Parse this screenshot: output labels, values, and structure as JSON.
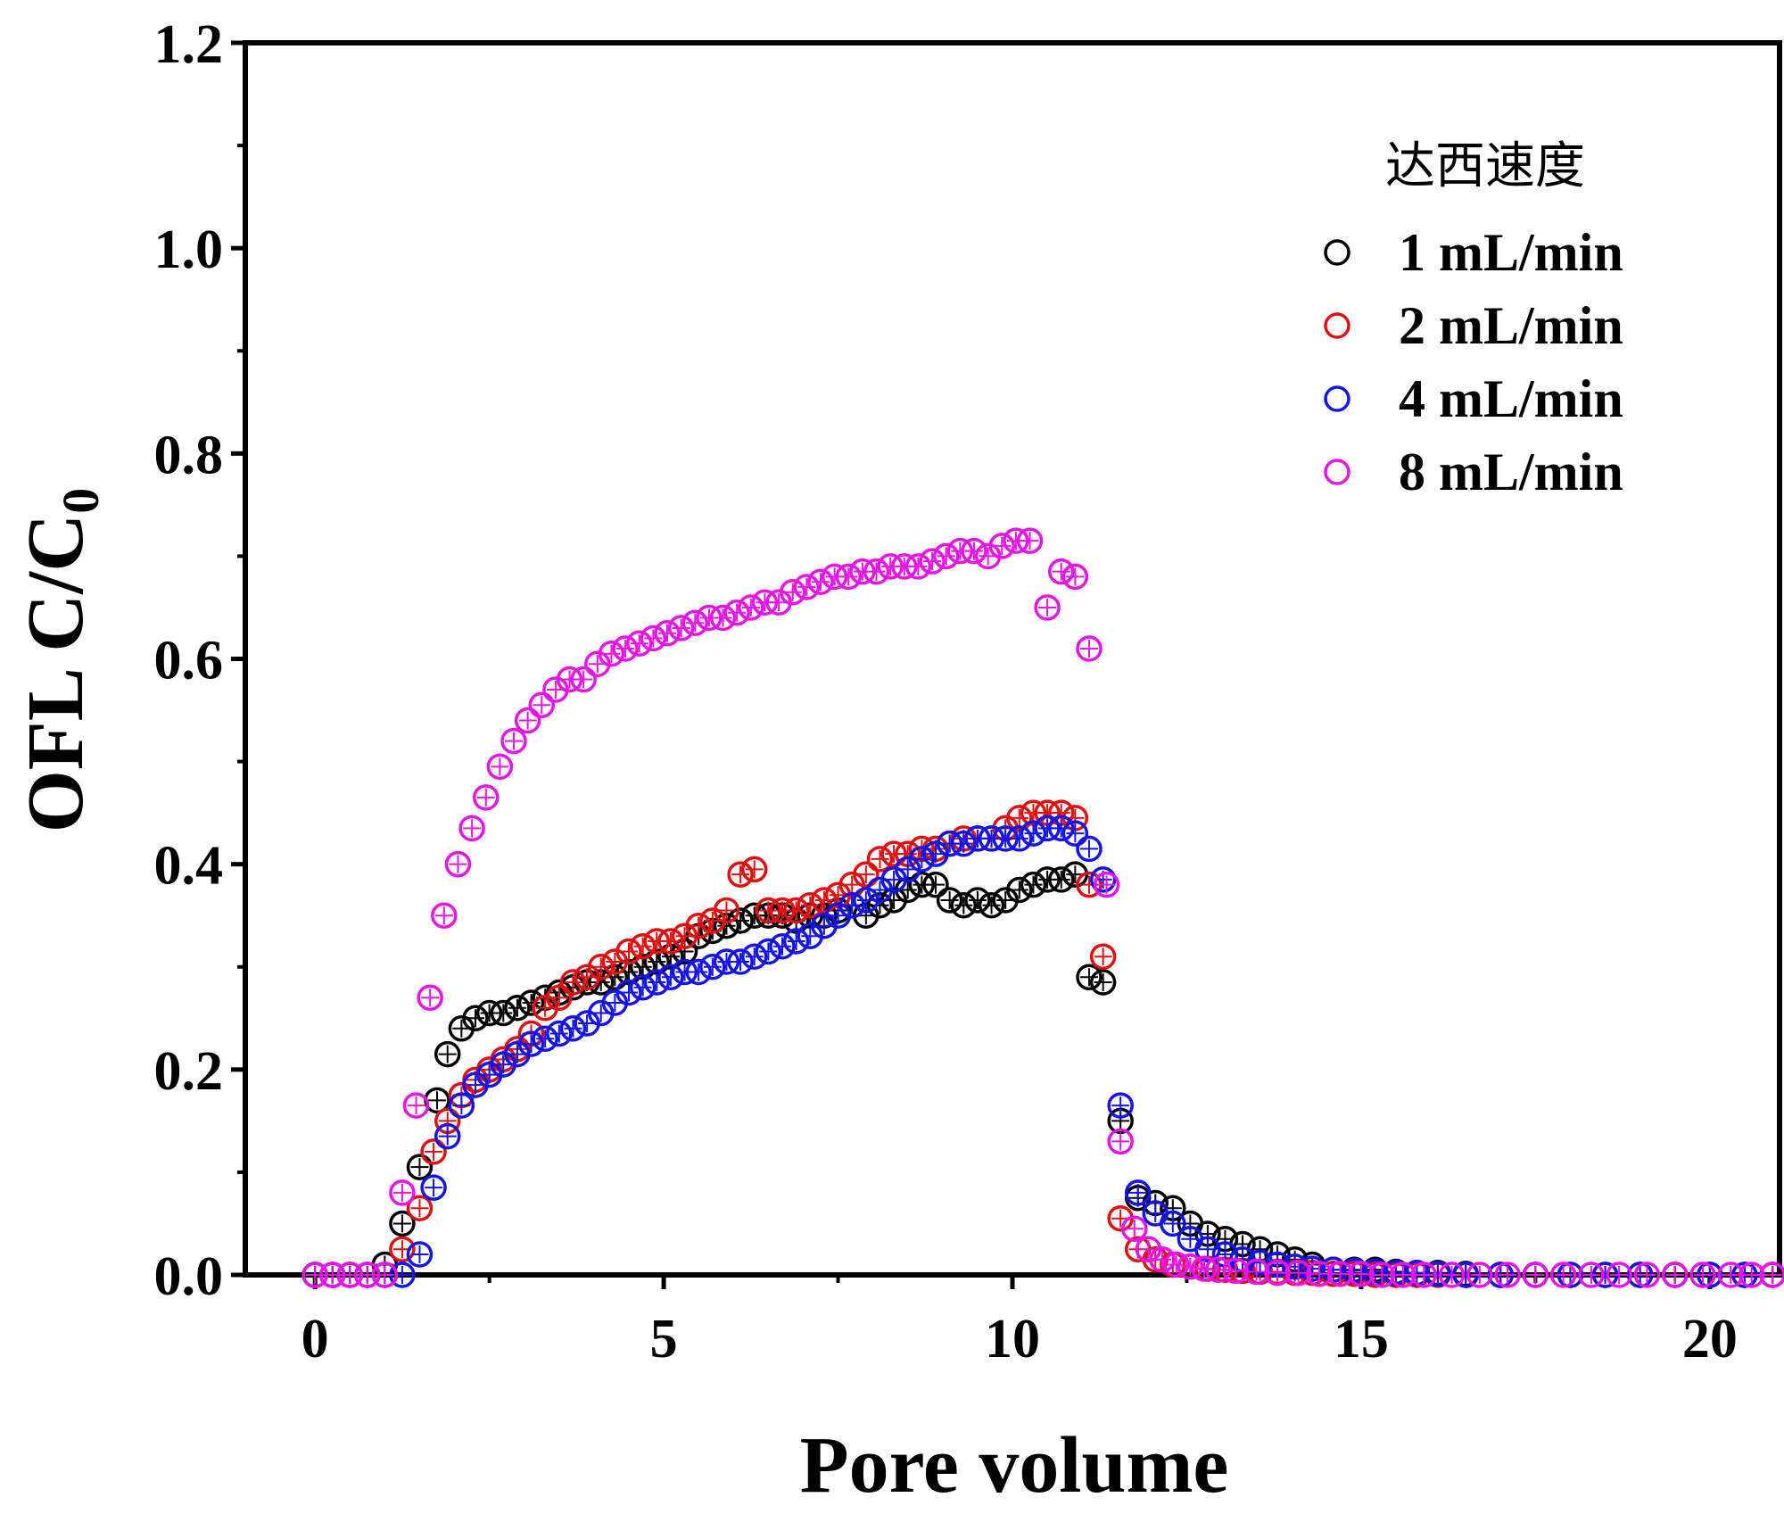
{
  "chart_data": {
    "type": "scatter",
    "title": "",
    "xlabel": "Pore volume",
    "ylabel_main": "OFL C/C",
    "ylabel_sub": "0",
    "xlim": [
      -1,
      21
    ],
    "ylim": [
      0,
      1.2
    ],
    "xticks": [
      0,
      5,
      10,
      15,
      20
    ],
    "xtick_labels": [
      "0",
      "5",
      "10",
      "15",
      "20"
    ],
    "yticks": [
      0.0,
      0.2,
      0.4,
      0.6,
      0.8,
      1.0,
      1.2
    ],
    "ytick_labels": [
      "0.0",
      "0.2",
      "0.4",
      "0.6",
      "0.8",
      "1.0",
      "1.2"
    ],
    "legend_title": "达西速度",
    "legend_position": "top-right",
    "series": [
      {
        "name": "1 mL/min",
        "color": "#000000",
        "x": [
          0,
          0.25,
          0.5,
          0.75,
          1.0,
          1.25,
          1.5,
          1.75,
          1.9,
          2.1,
          2.3,
          2.5,
          2.7,
          2.9,
          3.1,
          3.3,
          3.5,
          3.7,
          3.9,
          4.1,
          4.3,
          4.5,
          4.7,
          4.9,
          5.1,
          5.3,
          5.5,
          5.7,
          5.9,
          6.1,
          6.3,
          6.5,
          6.7,
          6.9,
          7.1,
          7.3,
          7.5,
          7.7,
          7.9,
          8.1,
          8.3,
          8.5,
          8.7,
          8.9,
          9.1,
          9.3,
          9.5,
          9.7,
          9.9,
          10.1,
          10.3,
          10.5,
          10.7,
          10.9,
          11.1,
          11.3,
          11.55,
          11.8,
          12.05,
          12.3,
          12.55,
          12.8,
          13.05,
          13.3,
          13.55,
          13.8,
          14.05,
          14.3,
          14.6,
          14.9,
          15.2,
          15.5,
          15.8,
          16.1,
          16.5,
          17,
          17.5,
          18,
          18.5,
          19,
          19.5,
          20,
          20.5,
          20.9
        ],
        "y": [
          0,
          0,
          0,
          0,
          0.01,
          0.05,
          0.105,
          0.17,
          0.215,
          0.24,
          0.25,
          0.255,
          0.255,
          0.26,
          0.265,
          0.27,
          0.275,
          0.28,
          0.285,
          0.285,
          0.29,
          0.295,
          0.3,
          0.305,
          0.31,
          0.315,
          0.33,
          0.335,
          0.34,
          0.345,
          0.35,
          0.35,
          0.35,
          0.345,
          0.35,
          0.35,
          0.355,
          0.36,
          0.35,
          0.36,
          0.365,
          0.375,
          0.38,
          0.38,
          0.365,
          0.36,
          0.365,
          0.36,
          0.365,
          0.375,
          0.38,
          0.385,
          0.385,
          0.39,
          0.29,
          0.285,
          0.15,
          0.075,
          0.07,
          0.065,
          0.05,
          0.04,
          0.035,
          0.03,
          0.025,
          0.02,
          0.015,
          0.01,
          0.005,
          0.005,
          0.005,
          0.003,
          0.002,
          0.002,
          0.001,
          0,
          0,
          0,
          0,
          0,
          0,
          0,
          0,
          0
        ]
      },
      {
        "name": "2 mL/min",
        "color": "#e01010",
        "x": [
          0,
          0.25,
          0.5,
          0.75,
          1.0,
          1.25,
          1.5,
          1.7,
          1.9,
          2.1,
          2.3,
          2.5,
          2.7,
          2.9,
          3.1,
          3.3,
          3.5,
          3.7,
          3.9,
          4.1,
          4.3,
          4.5,
          4.7,
          4.9,
          5.1,
          5.3,
          5.5,
          5.7,
          5.9,
          6.1,
          6.3,
          6.5,
          6.7,
          6.9,
          7.1,
          7.3,
          7.5,
          7.7,
          7.9,
          8.1,
          8.3,
          8.5,
          8.7,
          8.9,
          9.1,
          9.3,
          9.5,
          9.7,
          9.9,
          10.1,
          10.3,
          10.5,
          10.7,
          10.9,
          11.1,
          11.3,
          11.55,
          11.8,
          12.05,
          12.3,
          12.55,
          12.8,
          13.05,
          13.3,
          13.55,
          13.8,
          14.05,
          14.3,
          14.6,
          14.9,
          15.2,
          15.5,
          15.8,
          16.1,
          16.5,
          17,
          17.5,
          18,
          18.5,
          19,
          19.5,
          20,
          20.5,
          20.9
        ],
        "y": [
          0,
          0,
          0,
          0,
          0,
          0.025,
          0.065,
          0.12,
          0.15,
          0.175,
          0.19,
          0.2,
          0.21,
          0.22,
          0.235,
          0.26,
          0.27,
          0.285,
          0.29,
          0.3,
          0.305,
          0.315,
          0.32,
          0.325,
          0.325,
          0.33,
          0.34,
          0.345,
          0.355,
          0.39,
          0.395,
          0.355,
          0.355,
          0.355,
          0.36,
          0.365,
          0.37,
          0.38,
          0.39,
          0.405,
          0.41,
          0.41,
          0.415,
          0.415,
          0.42,
          0.425,
          0.425,
          0.425,
          0.435,
          0.445,
          0.45,
          0.45,
          0.45,
          0.445,
          0.38,
          0.31,
          0.055,
          0.025,
          0.015,
          0.01,
          0.008,
          0.006,
          0.005,
          0.004,
          0.003,
          0.003,
          0.002,
          0.002,
          0.001,
          0.001,
          0,
          0,
          0,
          0,
          0,
          0,
          0,
          0,
          0,
          0,
          0,
          0,
          0,
          0
        ]
      },
      {
        "name": "4 mL/min",
        "color": "#1414e6",
        "x": [
          0,
          0.25,
          0.5,
          0.75,
          1.0,
          1.25,
          1.5,
          1.7,
          1.9,
          2.1,
          2.3,
          2.5,
          2.7,
          2.9,
          3.1,
          3.3,
          3.5,
          3.7,
          3.9,
          4.1,
          4.3,
          4.5,
          4.7,
          4.9,
          5.1,
          5.3,
          5.5,
          5.7,
          5.9,
          6.1,
          6.3,
          6.5,
          6.7,
          6.9,
          7.1,
          7.3,
          7.5,
          7.7,
          7.9,
          8.1,
          8.3,
          8.5,
          8.7,
          8.9,
          9.1,
          9.3,
          9.5,
          9.7,
          9.9,
          10.1,
          10.3,
          10.5,
          10.7,
          10.9,
          11.1,
          11.3,
          11.55,
          11.8,
          12.05,
          12.3,
          12.55,
          12.8,
          13.05,
          13.3,
          13.55,
          13.8,
          14.05,
          14.3,
          14.6,
          14.9,
          15.2,
          15.5,
          15.8,
          16.1,
          16.5,
          17,
          17.5,
          18,
          18.5,
          19,
          19.5,
          20,
          20.5,
          20.9
        ],
        "y": [
          0,
          0,
          0,
          0,
          0,
          0,
          0.02,
          0.085,
          0.135,
          0.165,
          0.185,
          0.195,
          0.205,
          0.215,
          0.225,
          0.23,
          0.235,
          0.24,
          0.245,
          0.255,
          0.265,
          0.275,
          0.28,
          0.285,
          0.29,
          0.295,
          0.295,
          0.3,
          0.305,
          0.305,
          0.31,
          0.315,
          0.32,
          0.325,
          0.33,
          0.34,
          0.35,
          0.36,
          0.365,
          0.375,
          0.385,
          0.395,
          0.405,
          0.41,
          0.42,
          0.42,
          0.425,
          0.425,
          0.425,
          0.425,
          0.43,
          0.435,
          0.435,
          0.43,
          0.415,
          0.385,
          0.165,
          0.08,
          0.06,
          0.05,
          0.035,
          0.025,
          0.02,
          0.015,
          0.012,
          0.01,
          0.008,
          0.006,
          0.005,
          0.004,
          0.003,
          0.002,
          0.002,
          0.001,
          0,
          0,
          0,
          0,
          0,
          0,
          0,
          0,
          0,
          0
        ]
      },
      {
        "name": "8 mL/min",
        "color": "#e614e6",
        "x": [
          0,
          0.25,
          0.5,
          0.75,
          1.0,
          1.25,
          1.45,
          1.65,
          1.85,
          2.05,
          2.25,
          2.45,
          2.65,
          2.85,
          3.05,
          3.25,
          3.45,
          3.65,
          3.85,
          4.05,
          4.25,
          4.45,
          4.65,
          4.85,
          5.05,
          5.25,
          5.45,
          5.65,
          5.85,
          6.05,
          6.25,
          6.45,
          6.65,
          6.85,
          7.05,
          7.25,
          7.45,
          7.65,
          7.85,
          8.05,
          8.25,
          8.45,
          8.65,
          8.85,
          9.05,
          9.25,
          9.45,
          9.65,
          9.85,
          10.05,
          10.25,
          10.5,
          10.7,
          10.9,
          11.1,
          11.35,
          11.55,
          11.75,
          11.95,
          12.15,
          12.35,
          12.55,
          12.75,
          12.95,
          13.2,
          13.5,
          13.8,
          14.1,
          14.4,
          14.7,
          15,
          15.3,
          15.6,
          15.9,
          16.3,
          16.7,
          17.1,
          17.5,
          17.9,
          18.3,
          18.7,
          19.1,
          19.5,
          19.9,
          20.3,
          20.6,
          20.9
        ],
        "y": [
          0,
          0,
          0,
          0,
          0,
          0.08,
          0.165,
          0.27,
          0.35,
          0.4,
          0.435,
          0.465,
          0.495,
          0.52,
          0.54,
          0.555,
          0.57,
          0.58,
          0.58,
          0.595,
          0.605,
          0.61,
          0.615,
          0.62,
          0.625,
          0.63,
          0.635,
          0.64,
          0.64,
          0.645,
          0.65,
          0.655,
          0.655,
          0.665,
          0.67,
          0.675,
          0.68,
          0.68,
          0.685,
          0.685,
          0.69,
          0.69,
          0.69,
          0.695,
          0.7,
          0.705,
          0.705,
          0.7,
          0.71,
          0.715,
          0.715,
          0.65,
          0.685,
          0.68,
          0.61,
          0.38,
          0.13,
          0.045,
          0.025,
          0.015,
          0.01,
          0.008,
          0.006,
          0.005,
          0.004,
          0.003,
          0.002,
          0.002,
          0.001,
          0.001,
          0.001,
          0,
          0,
          0,
          0,
          0,
          0,
          0,
          0,
          0,
          0,
          0,
          0,
          0,
          0,
          0,
          0
        ]
      }
    ]
  }
}
